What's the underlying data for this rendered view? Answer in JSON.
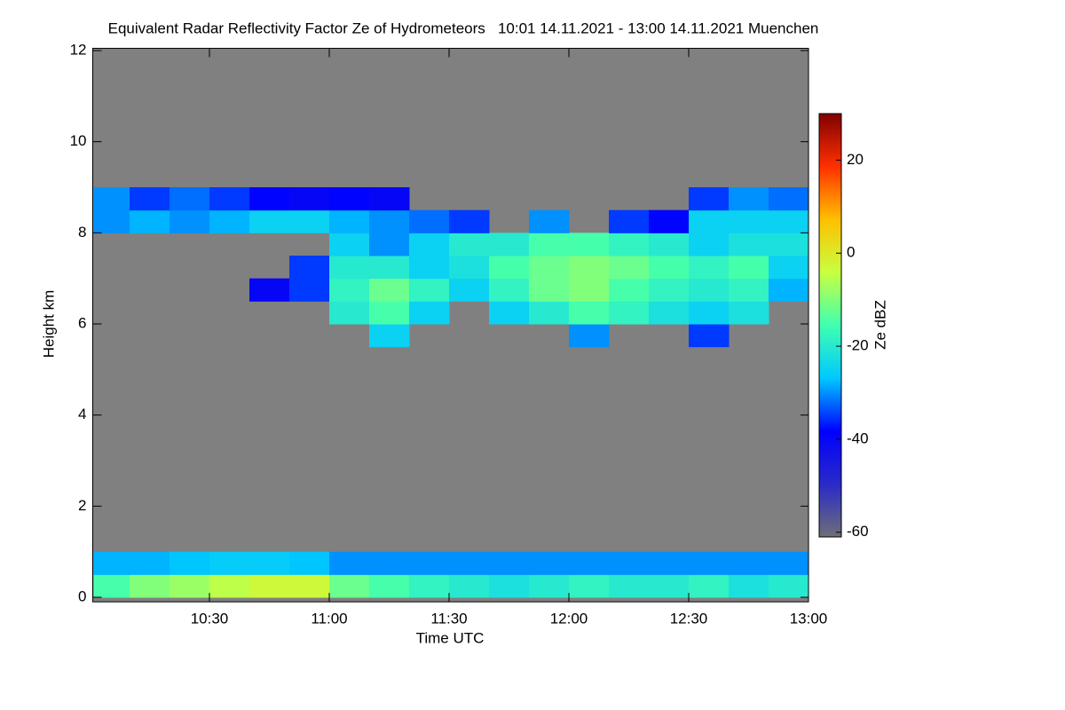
{
  "chart_data": {
    "type": "heatmap",
    "title": "Equivalent Radar Reflectivity Factor Ze of Hydrometeors   10:01 14.11.2021 - 13:00 14.11.2021 Muenchen",
    "xlabel": "Time UTC",
    "ylabel": "Height km",
    "colorbar_label": "Ze dBZ",
    "background_color": "#808080",
    "colorscale": [
      "#6e6e78",
      "#2a2ac8",
      "#0000ff",
      "#00c8ff",
      "#40ffb0",
      "#c8ff40",
      "#ffc000",
      "#ff3000",
      "#800000"
    ],
    "xlim": [
      1,
      180
    ],
    "xticks": [
      {
        "value": 30,
        "label": "10:30"
      },
      {
        "value": 60,
        "label": "11:00"
      },
      {
        "value": 90,
        "label": "11:30"
      },
      {
        "value": 120,
        "label": "12:00"
      },
      {
        "value": 150,
        "label": "12:30"
      },
      {
        "value": 180,
        "label": "13:00"
      }
    ],
    "ylim": [
      -0.1,
      12.05
    ],
    "yticks": [
      0,
      2,
      4,
      6,
      8,
      10,
      12
    ],
    "zlim": [
      -61,
      30
    ],
    "zticks": [
      -60,
      -40,
      -20,
      0,
      20
    ],
    "x_edges": [
      1,
      10,
      20,
      30,
      40,
      50,
      60,
      70,
      80,
      90,
      100,
      110,
      120,
      130,
      140,
      150,
      160,
      170,
      180
    ],
    "y_edges": [
      0,
      0.5,
      1,
      1.5,
      2,
      2.5,
      3,
      3.5,
      4,
      4.5,
      5,
      5.5,
      6,
      6.5,
      7,
      7.5,
      8,
      8.5,
      9,
      9.5,
      10,
      10.5,
      11,
      11.5,
      12
    ],
    "z": [
      [
        -15,
        -10,
        -8,
        -5,
        -3,
        -3,
        -12,
        -15,
        -18,
        -20,
        -22,
        -20,
        -18,
        -20,
        -20,
        -18,
        -22,
        -20
      ],
      [
        -28,
        -28,
        -27,
        -26,
        -26,
        -27,
        -30,
        -30,
        -30,
        -30,
        -30,
        -30,
        -30,
        -30,
        -30,
        -30,
        -30,
        -30
      ],
      [
        null,
        null,
        null,
        null,
        null,
        null,
        null,
        null,
        null,
        null,
        null,
        null,
        null,
        null,
        null,
        null,
        null,
        null
      ],
      [
        null,
        null,
        null,
        null,
        null,
        null,
        null,
        null,
        null,
        null,
        null,
        null,
        null,
        null,
        null,
        null,
        null,
        null
      ],
      [
        null,
        null,
        null,
        null,
        null,
        null,
        null,
        null,
        null,
        null,
        null,
        null,
        null,
        null,
        null,
        null,
        null,
        null
      ],
      [
        null,
        null,
        null,
        null,
        null,
        null,
        null,
        null,
        null,
        null,
        null,
        null,
        null,
        null,
        null,
        null,
        null,
        null
      ],
      [
        null,
        null,
        null,
        null,
        null,
        null,
        null,
        null,
        null,
        null,
        null,
        null,
        null,
        null,
        null,
        null,
        null,
        null
      ],
      [
        null,
        null,
        null,
        null,
        null,
        null,
        null,
        null,
        null,
        null,
        null,
        null,
        null,
        null,
        null,
        null,
        null,
        null
      ],
      [
        null,
        null,
        null,
        null,
        null,
        null,
        null,
        null,
        null,
        null,
        null,
        null,
        null,
        null,
        null,
        null,
        null,
        null
      ],
      [
        null,
        null,
        null,
        null,
        null,
        null,
        null,
        null,
        null,
        null,
        null,
        null,
        null,
        null,
        null,
        null,
        null,
        null
      ],
      [
        null,
        null,
        null,
        null,
        null,
        null,
        null,
        null,
        null,
        null,
        null,
        null,
        null,
        null,
        null,
        null,
        null,
        null
      ],
      [
        null,
        null,
        null,
        null,
        null,
        null,
        null,
        -25,
        null,
        null,
        null,
        null,
        -30,
        null,
        null,
        -35,
        null,
        null
      ],
      [
        null,
        null,
        null,
        null,
        null,
        null,
        -20,
        -15,
        -25,
        null,
        -25,
        -20,
        -15,
        -18,
        -22,
        -25,
        -22,
        null
      ],
      [
        null,
        null,
        null,
        null,
        -40,
        -35,
        -18,
        -12,
        -18,
        -25,
        -18,
        -12,
        -10,
        -15,
        -18,
        -20,
        -18,
        -28
      ],
      [
        null,
        null,
        null,
        null,
        null,
        -35,
        -20,
        -20,
        -25,
        -22,
        -15,
        -12,
        -10,
        -12,
        -15,
        -18,
        -15,
        -25
      ],
      [
        null,
        null,
        null,
        null,
        null,
        null,
        -25,
        -30,
        -25,
        -20,
        -20,
        -15,
        -15,
        -18,
        -20,
        -25,
        -22,
        -22
      ],
      [
        -30,
        -28,
        -30,
        -28,
        -25,
        -25,
        -28,
        -30,
        -32,
        -35,
        null,
        -30,
        null,
        -35,
        -38,
        -25,
        -25,
        -25
      ],
      [
        -30,
        -35,
        -32,
        -35,
        -38,
        -40,
        -38,
        -40,
        null,
        null,
        null,
        null,
        null,
        null,
        null,
        -35,
        -30,
        -32
      ],
      [
        null,
        null,
        null,
        null,
        null,
        null,
        null,
        null,
        null,
        null,
        null,
        null,
        null,
        null,
        null,
        null,
        null,
        null
      ],
      [
        null,
        null,
        null,
        null,
        null,
        null,
        null,
        null,
        null,
        null,
        null,
        null,
        null,
        null,
        null,
        null,
        null,
        null
      ],
      [
        null,
        null,
        null,
        null,
        null,
        null,
        null,
        null,
        null,
        null,
        null,
        null,
        null,
        null,
        null,
        null,
        null,
        null
      ],
      [
        null,
        null,
        null,
        null,
        null,
        null,
        null,
        null,
        null,
        null,
        null,
        null,
        null,
        null,
        null,
        null,
        null,
        null
      ],
      [
        null,
        null,
        null,
        null,
        null,
        null,
        null,
        null,
        null,
        null,
        null,
        null,
        null,
        null,
        null,
        null,
        null,
        null
      ],
      [
        null,
        null,
        null,
        null,
        null,
        null,
        null,
        null,
        null,
        null,
        null,
        null,
        null,
        null,
        null,
        null,
        null,
        null
      ]
    ]
  }
}
